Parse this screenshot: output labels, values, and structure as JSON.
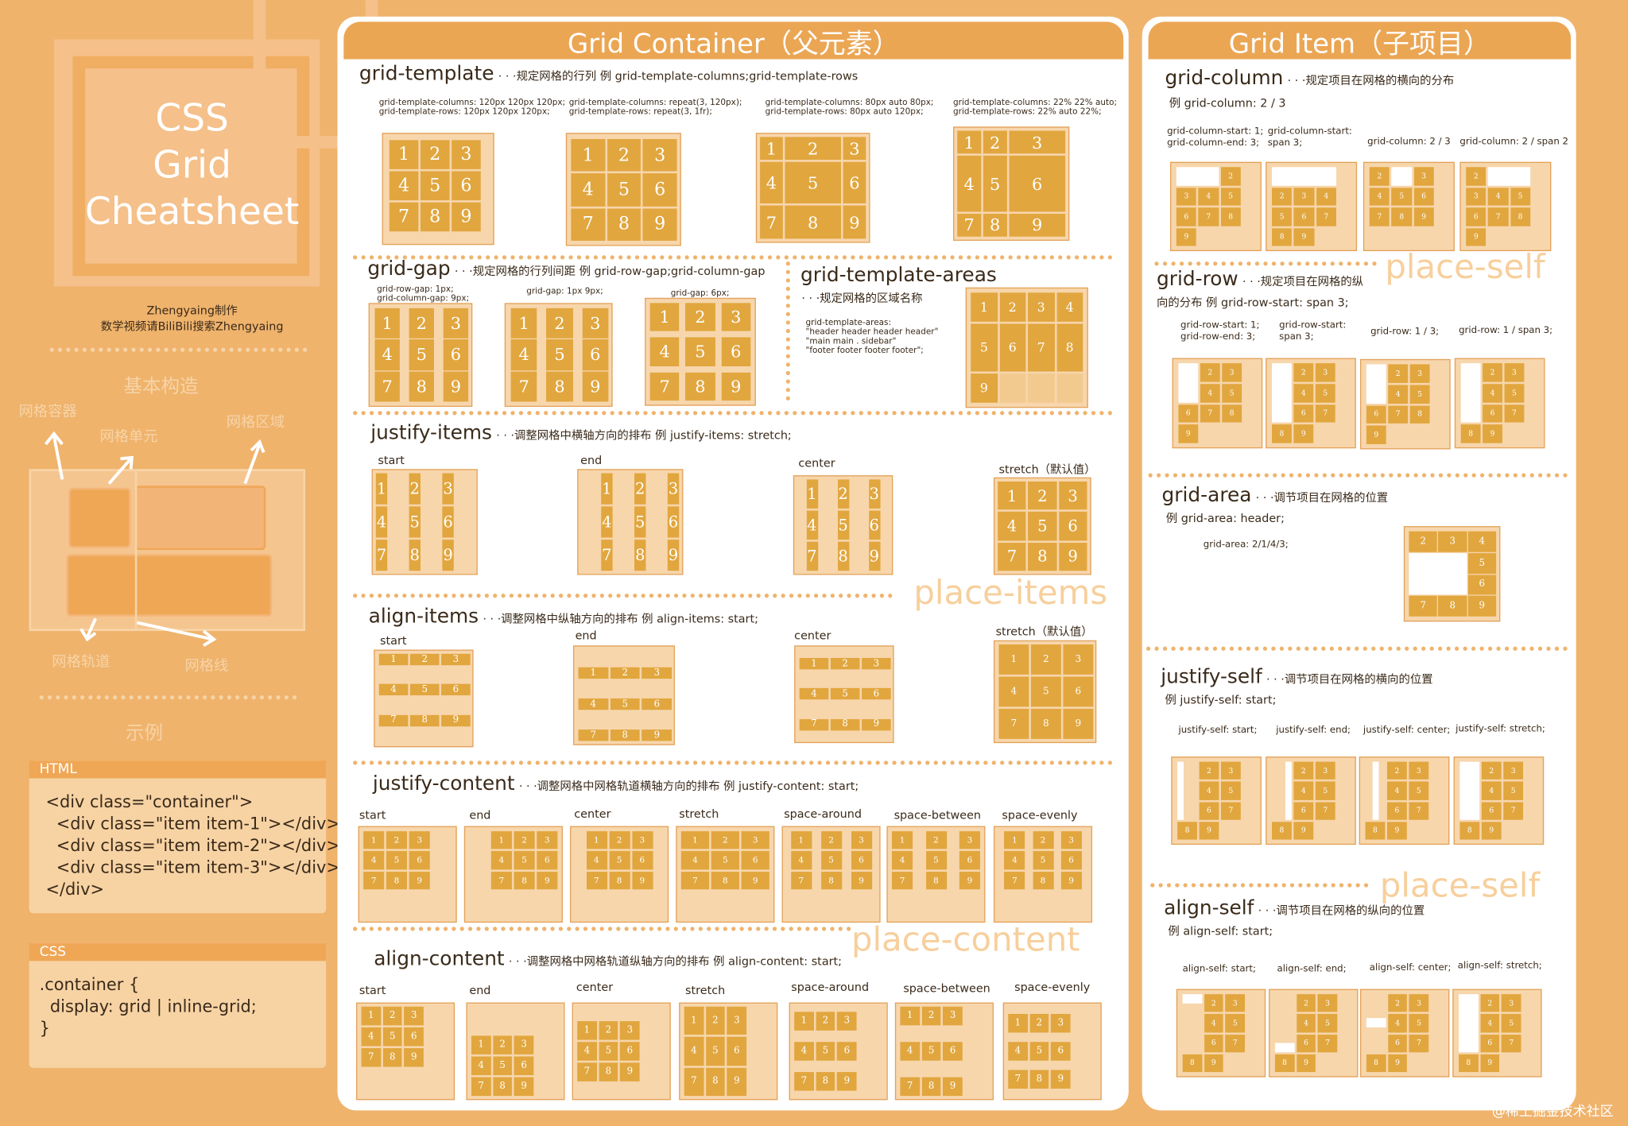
{
  "sidebar": {
    "title_lines": [
      "CSS",
      "Grid",
      "Cheatsheet"
    ],
    "author": "Zhengyaing制作",
    "author_note": "数学视频请BiliBili搜索Zhengyaing",
    "basic_heading": "基本构造",
    "diagram_labels": {
      "container": "网格容器",
      "cell": "网格单元",
      "area": "网格区域",
      "track": "网格轨道",
      "line": "网格线"
    },
    "example_heading": "示例",
    "html_label": "HTML",
    "html_code": "<div class=\"container\">\n  <div class=\"item item-1\"></div>\n  <div class=\"item item-2\"></div>\n  <div class=\"item item-3\"></div>\n</div>",
    "css_label": "CSS",
    "css_code": ".container {\n  display: grid | inline-grid;\n}"
  },
  "container_panel": {
    "title": "Grid Container（父元素）",
    "grid_template": {
      "title": "grid-template",
      "desc": "· · ·规定网格的行列   例  grid-template-columns;grid-template-rows",
      "examples": [
        "grid-template-columns: 120px 120px 120px;\ngrid-template-rows: 120px 120px 120px;",
        "grid-template-columns: repeat(3, 120px);\ngrid-template-rows: repeat(3, 1fr);",
        "grid-template-columns: 80px auto 80px;\ngrid-template-rows: 80px auto 120px;",
        "grid-template-columns: 22% 22% auto;\ngrid-template-rows: 22% auto 22%;"
      ]
    },
    "grid_gap": {
      "title": "grid-gap",
      "desc": "· · ·规定网格的行列间距   例  grid-row-gap;grid-column-gap",
      "examples": [
        "grid-row-gap: 1px;\ngrid-column-gap: 9px;",
        "grid-gap: 1px 9px;",
        "grid-gap: 6px;"
      ]
    },
    "grid_template_areas": {
      "title": "grid-template-areas",
      "desc": "· · ·规定网格的区域名称",
      "code": "grid-template-areas:\n\"header header header header\"\n\"main main . sidebar\"\n\"footer footer footer footer\";"
    },
    "justify_items": {
      "title": "justify-items",
      "desc": "· · ·调整网格中横轴方向的排布   例  justify-items: stretch;",
      "labels": [
        "start",
        "end",
        "center",
        "stretch（默认值）"
      ]
    },
    "place_items": "place-items",
    "align_items": {
      "title": "align-items",
      "desc": "· · ·调整网格中纵轴方向的排布   例  align-items: start;",
      "labels": [
        "start",
        "end",
        "center",
        "stretch（默认值）"
      ]
    },
    "justify_content": {
      "title": "justify-content",
      "desc": "· · ·调整网格中网格轨道横轴方向的排布   例  justify-content: start;",
      "labels": [
        "start",
        "end",
        "center",
        "stretch",
        "space-around",
        "space-between",
        "space-evenly"
      ]
    },
    "place_content": "place-content",
    "align_content": {
      "title": "align-content",
      "desc": "· · ·调整网格中网格轨道纵轴方向的排布   例  align-content: start;",
      "labels": [
        "start",
        "end",
        "center",
        "stretch",
        "space-around",
        "space-between",
        "space-evenly"
      ]
    }
  },
  "item_panel": {
    "title": "Grid Item（子项目）",
    "grid_column": {
      "title": "grid-column",
      "desc": "· · ·规定项目在网格的横向的分布",
      "example": "例  grid-column: 2 / 3",
      "labels": [
        "grid-column-start: 1;\ngrid-column-end: 3;",
        "grid-column-start:\nspan 3;",
        "grid-column: 2 / 3",
        "grid-column: 2 / span 2"
      ]
    },
    "place_self_1": "place-self",
    "grid_row": {
      "title": "grid-row",
      "desc": "· · ·规定项目在网格的纵",
      "desc2": "向的分布  例  grid-row-start: span 3;",
      "labels": [
        "grid-row-start: 1;\ngrid-row-end: 3;",
        "grid-row-start:\nspan 3;",
        "grid-row: 1 / 3;",
        "grid-row: 1 / span 3;"
      ]
    },
    "grid_area": {
      "title": "grid-area",
      "desc": "· · ·调节项目在网格的位置",
      "example": "例  grid-area: header;",
      "label": "grid-area: 2/1/4/3;"
    },
    "justify_self": {
      "title": "justify-self",
      "desc": "· · ·调节项目在网格的横向的位置",
      "example": "例  justify-self: start;",
      "labels": [
        "justify-self: start;",
        "justify-self: end;",
        "justify-self: center;",
        "justify-self: stretch;"
      ]
    },
    "place_self_2": "place-self",
    "align_self": {
      "title": "align-self",
      "desc": "· · ·调节项目在网格的纵向的位置",
      "example": "例  align-self: start;",
      "labels": [
        "align-self: start;",
        "align-self: end;",
        "align-self: center;",
        "align-self: stretch;"
      ]
    }
  },
  "watermark": "@稀土掘金技术社区",
  "colors": {
    "background": "#EFB36C",
    "cell": "#E1A63E",
    "box": "#F7D6AC",
    "header": "#EBA654"
  }
}
